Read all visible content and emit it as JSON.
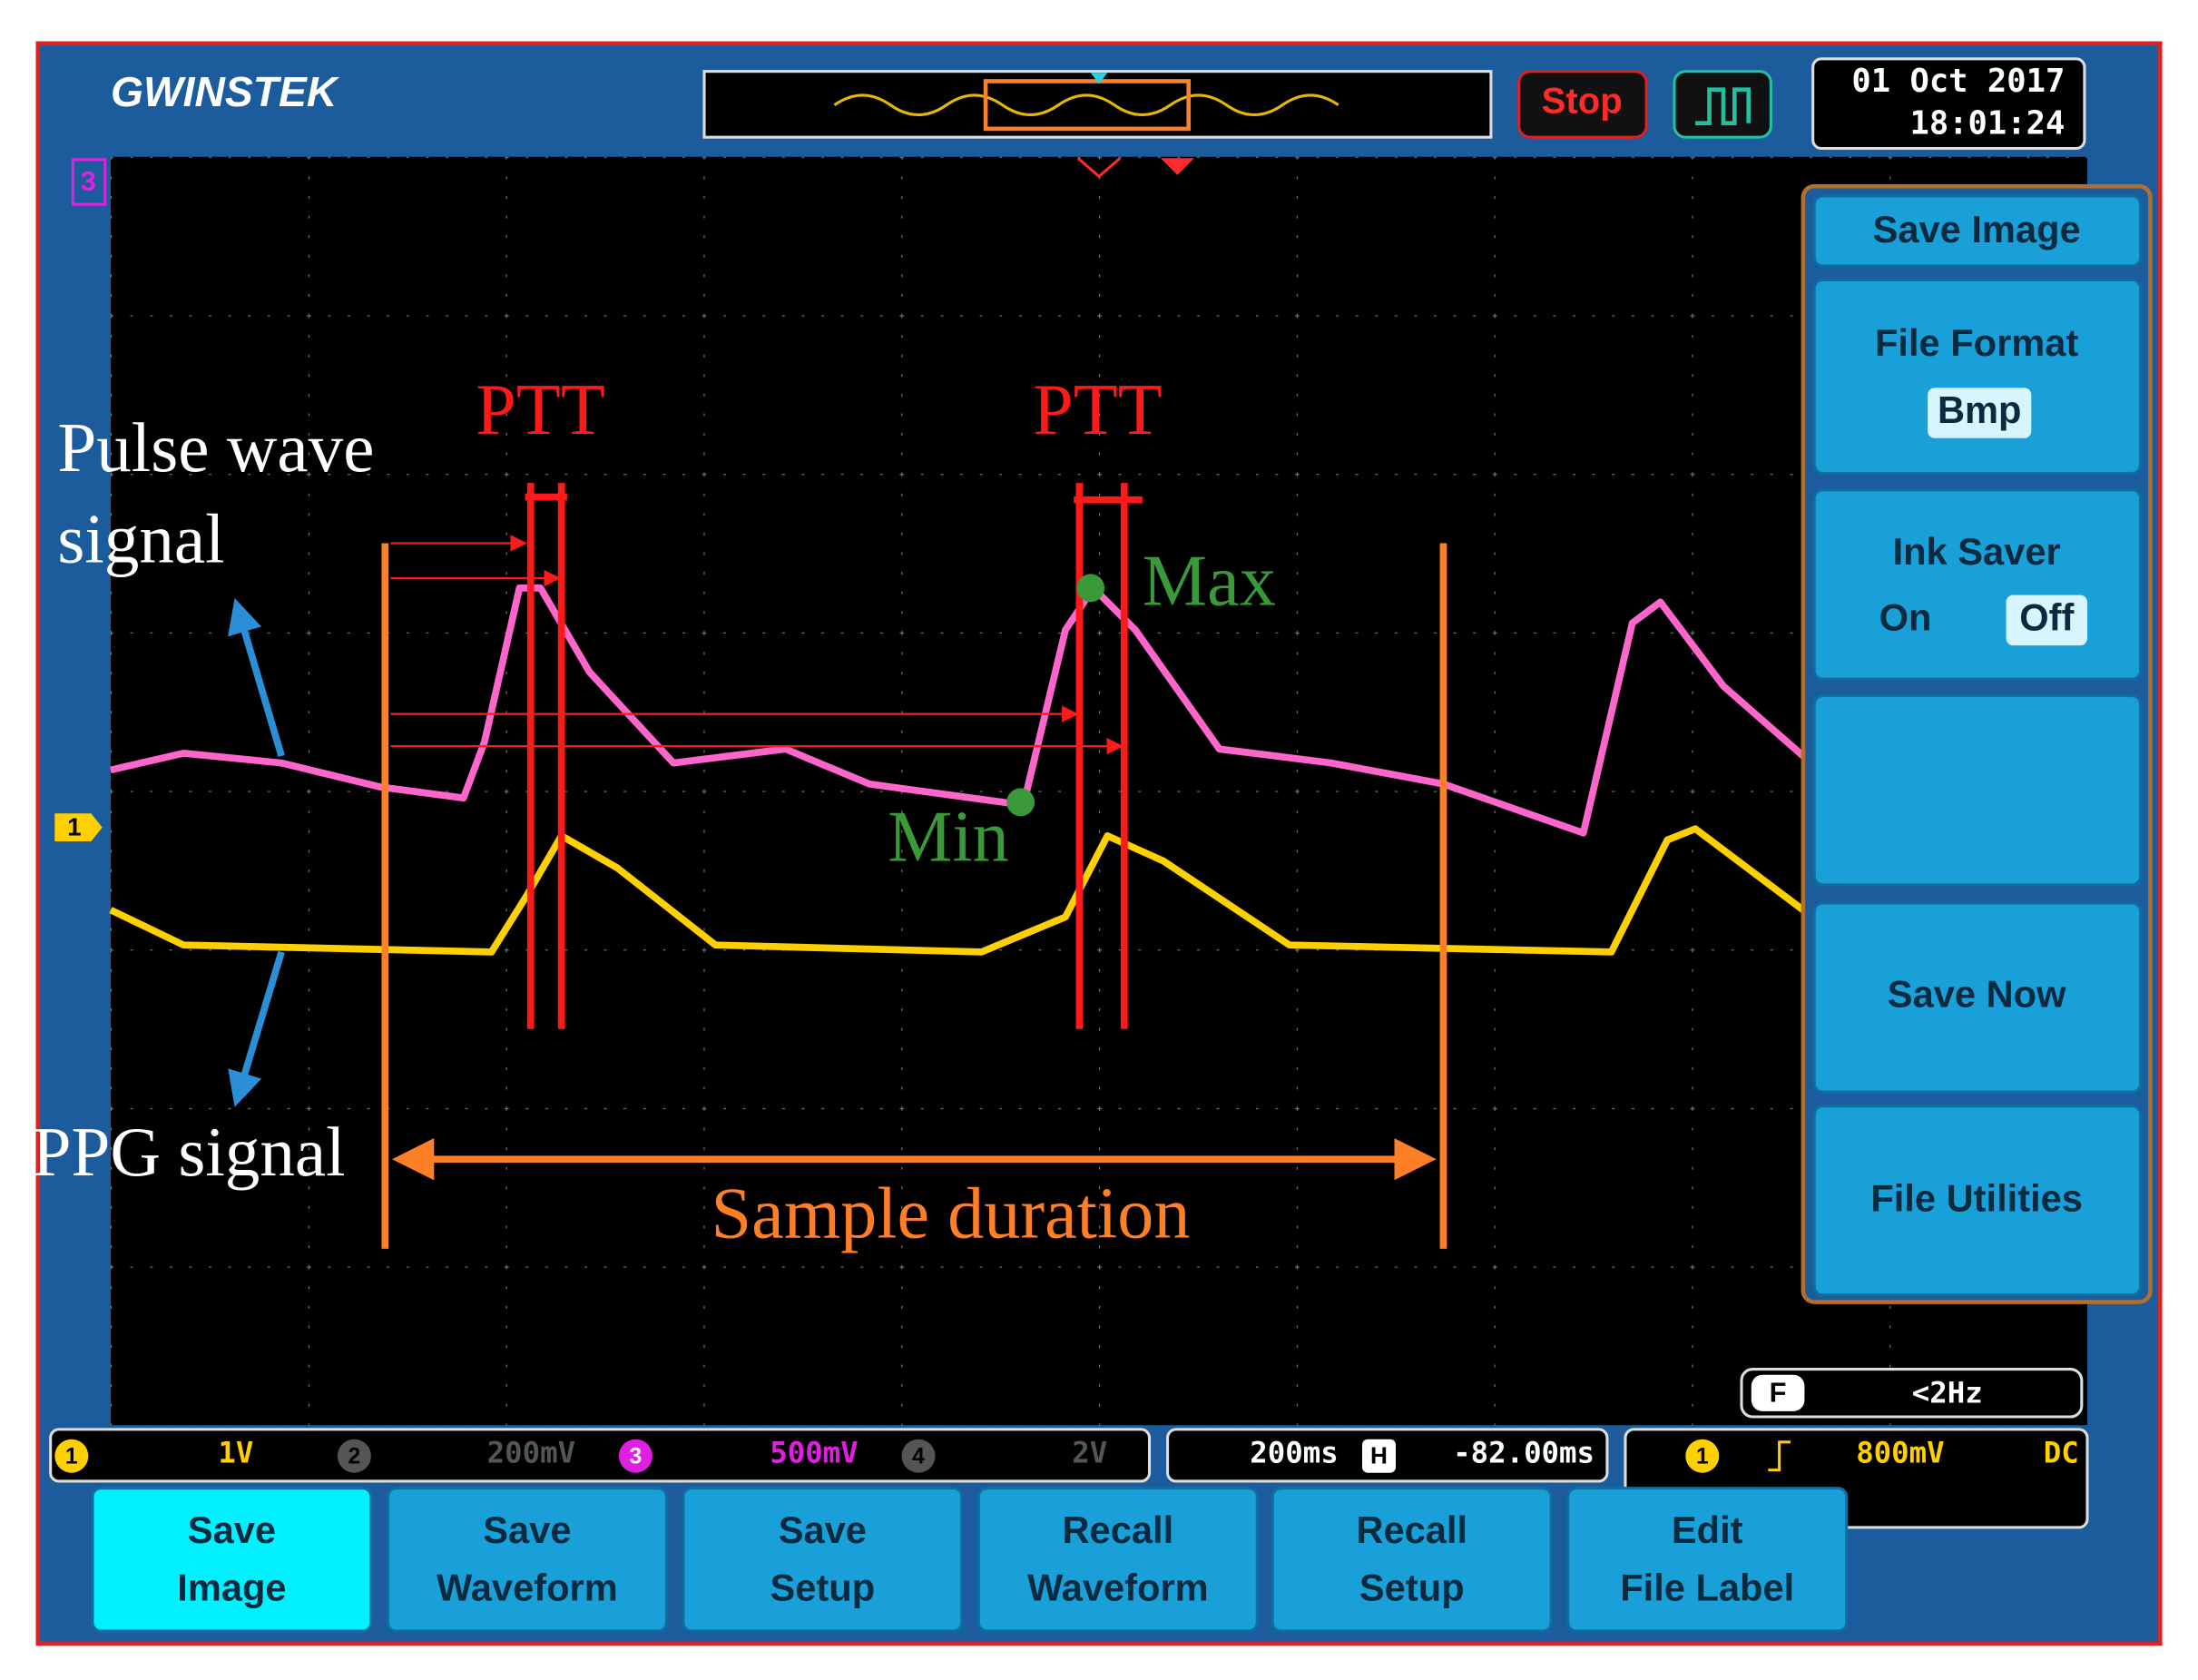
{
  "header": {
    "brand": "GWINSTEK",
    "run_state": "Stop",
    "date": "01 Oct 2017",
    "time": "18:01:24"
  },
  "screen": {
    "channel_3_marker": "3",
    "channel_1_marker": "1",
    "trigger_label": "F",
    "trigger_frequency": "<2Hz"
  },
  "side_menu": {
    "title": "Save Image",
    "file_format": {
      "label": "File Format",
      "value": "Bmp"
    },
    "ink_saver": {
      "label": "Ink Saver",
      "on": "On",
      "off": "Off"
    },
    "save_now": "Save Now",
    "file_utilities": "File Utilities"
  },
  "status_bar": {
    "ch1": {
      "number": "1",
      "scale": "1V"
    },
    "ch2": {
      "number": "2",
      "scale": "200mV"
    },
    "ch3": {
      "number": "3",
      "scale": "500mV"
    },
    "ch4": {
      "number": "4",
      "scale": "2V"
    },
    "timebase": "200ms",
    "position_label": "H",
    "position": "-82.00ms",
    "trigger": {
      "source": "1",
      "level": "800mV",
      "coupling": "DC"
    }
  },
  "bottom_menu": [
    {
      "lines": [
        "Save",
        "Image"
      ]
    },
    {
      "lines": [
        "Save",
        "Waveform"
      ]
    },
    {
      "lines": [
        "Save",
        "Setup"
      ]
    },
    {
      "lines": [
        "Recall",
        "Waveform"
      ]
    },
    {
      "lines": [
        "Recall",
        "Setup"
      ]
    },
    {
      "lines": [
        "Edit",
        "File Label"
      ]
    }
  ],
  "annotations": {
    "ptt_left": "PTT",
    "ptt_right": "PTT",
    "pulse_wave": [
      "Pulse wave",
      "signal"
    ],
    "ppg": "PPG signal",
    "max": "Max",
    "min": "Min",
    "sample_duration": "Sample duration"
  }
}
